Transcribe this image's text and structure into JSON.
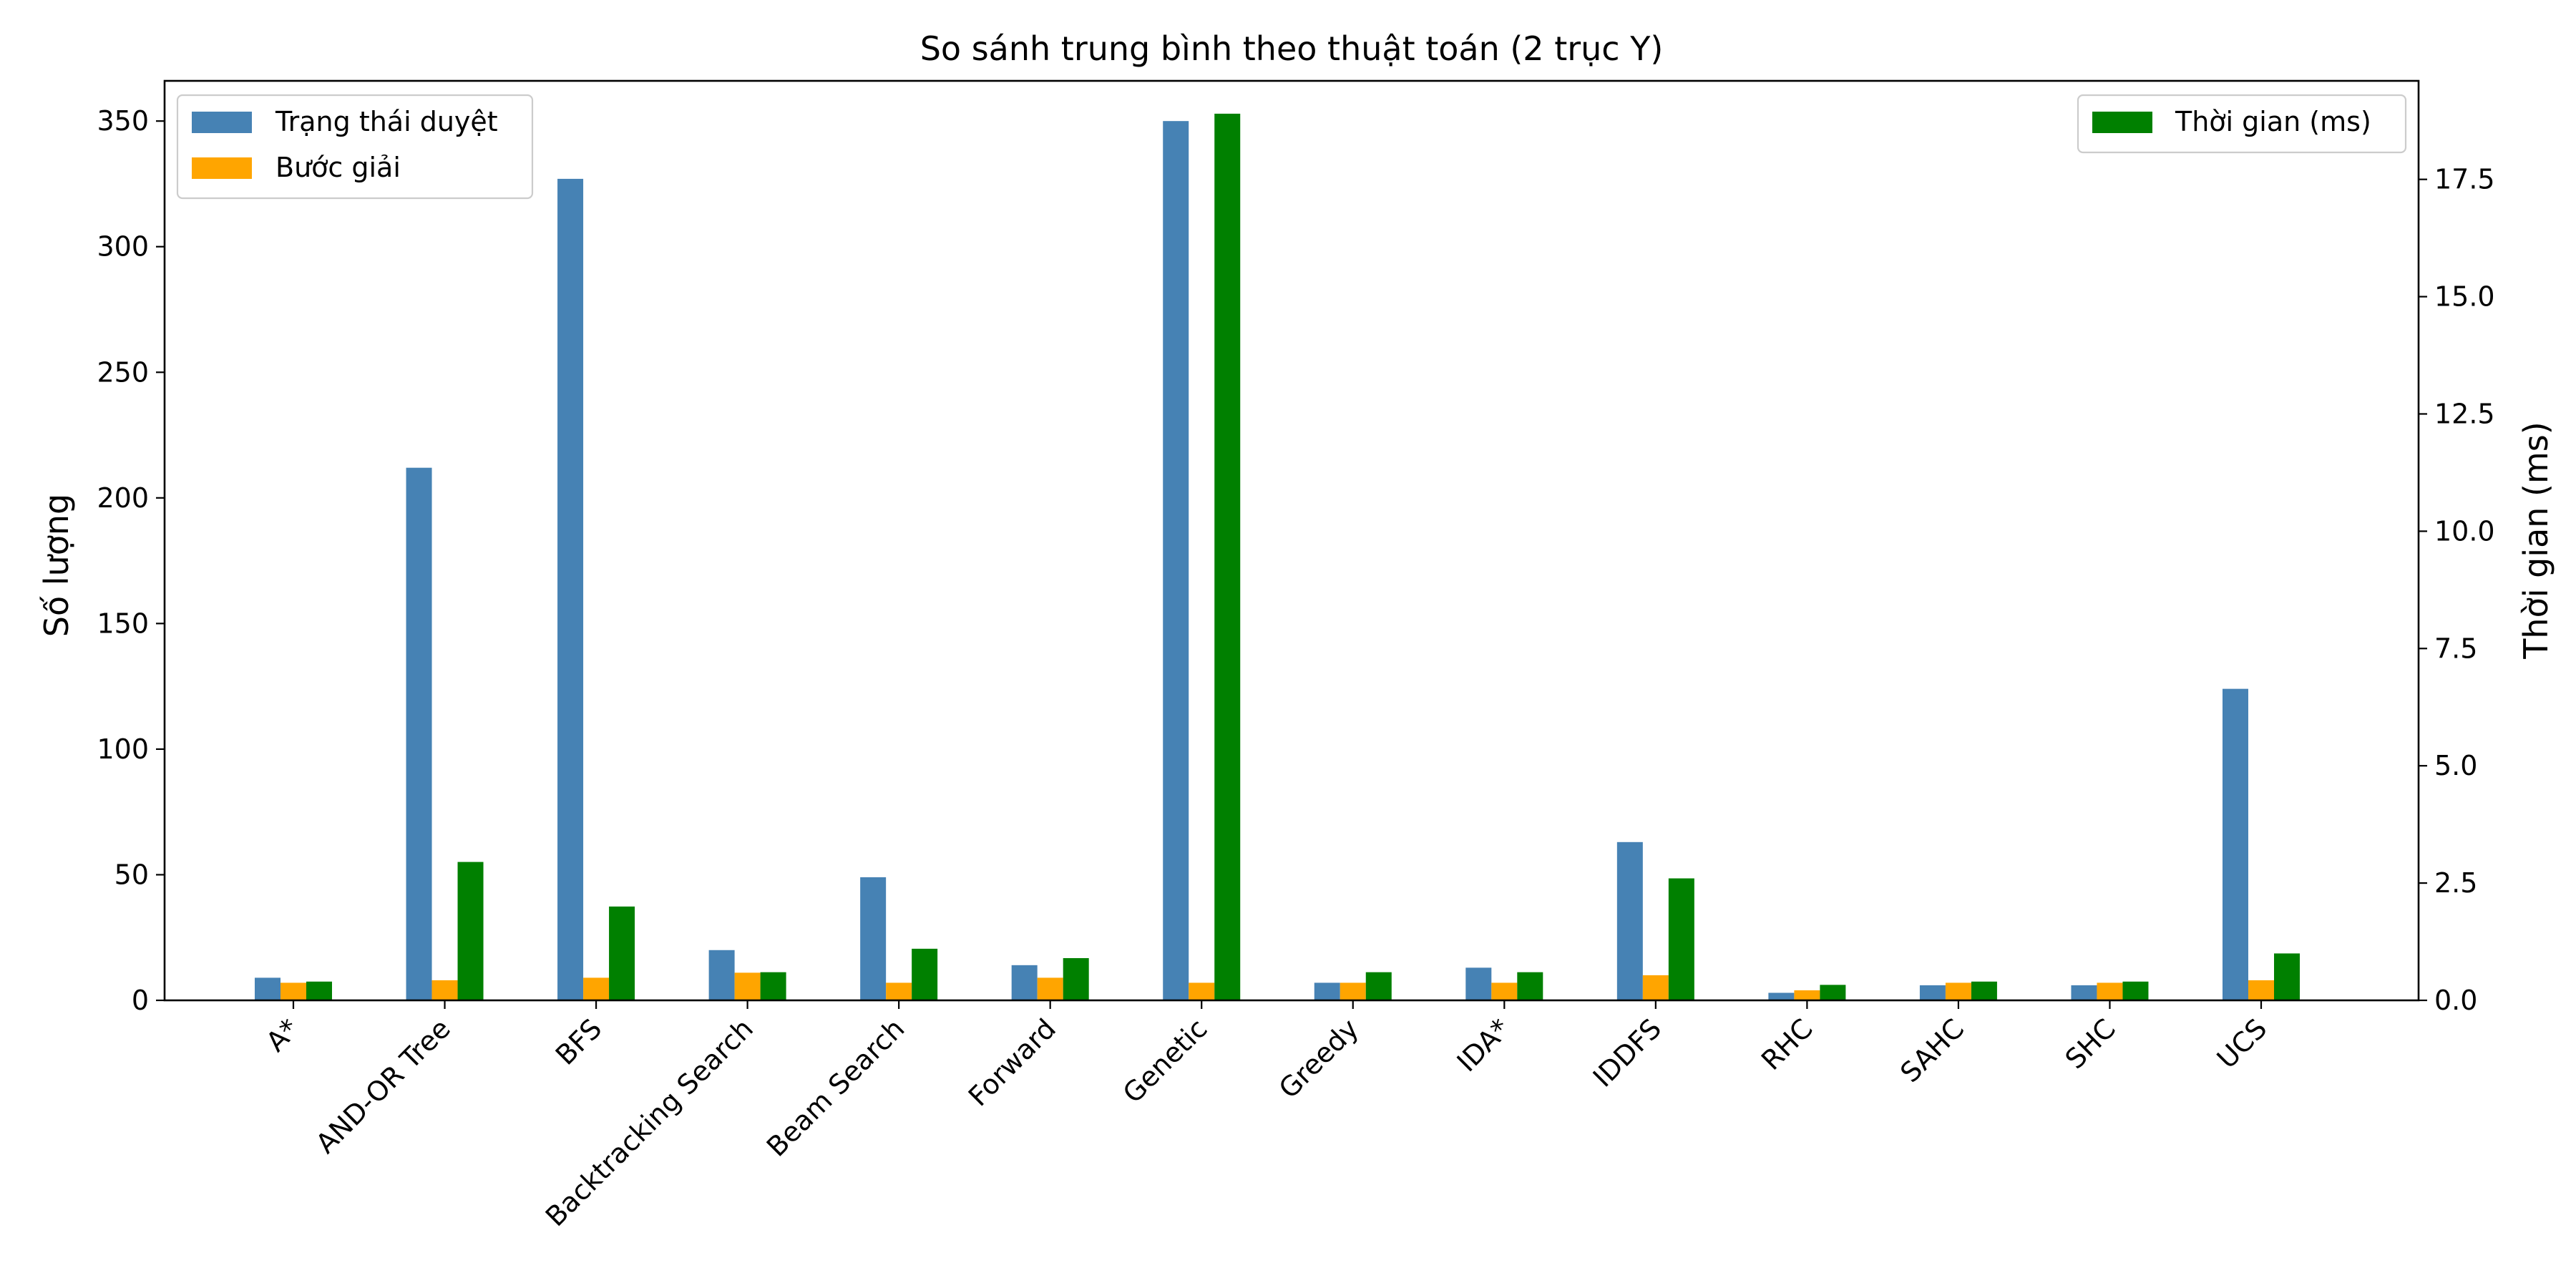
{
  "chart_data": {
    "type": "bar",
    "title": "So sánh trung bình theo thuật toán (2 trục Y)",
    "xlabel": "",
    "ylabel_left": "Số lượng",
    "ylabel_right": "Thời gian (ms)",
    "ylim_left": [
      0,
      366
    ],
    "ylim_right": [
      0,
      19.6
    ],
    "yticks_left": [
      0,
      50,
      100,
      150,
      200,
      250,
      300,
      350
    ],
    "yticks_right": [
      "0.0",
      "2.5",
      "5.0",
      "7.5",
      "10.0",
      "12.5",
      "15.0",
      "17.5"
    ],
    "categories": [
      "A*",
      "AND-OR Tree",
      "BFS",
      "Backtracking Search",
      "Beam Search",
      "Forward",
      "Genetic",
      "Greedy",
      "IDA*",
      "IDDFS",
      "RHC",
      "SAHC",
      "SHC",
      "UCS"
    ],
    "series": [
      {
        "name": "Trạng thái duyệt",
        "axis": "left",
        "color": "#4682b4",
        "values": [
          9,
          212,
          327,
          20,
          49,
          14,
          350,
          7,
          13,
          63,
          3,
          6,
          6,
          124
        ]
      },
      {
        "name": "Bước giải",
        "axis": "left",
        "color": "#ffa500",
        "values": [
          7,
          8,
          9,
          11,
          7,
          9,
          7,
          7,
          7,
          10,
          4,
          7,
          7,
          8
        ]
      },
      {
        "name": "Thời gian (ms)",
        "axis": "right",
        "color": "#008000",
        "values": [
          0.4,
          2.95,
          2.0,
          0.6,
          1.1,
          0.9,
          18.9,
          0.6,
          0.6,
          2.6,
          0.33,
          0.4,
          0.4,
          1.0
        ]
      }
    ],
    "legend_left": {
      "position": "upper-left",
      "entries": [
        "Trạng thái duyệt",
        "Bước giải"
      ]
    },
    "legend_right": {
      "position": "upper-right",
      "entries": [
        "Thời gian (ms)"
      ]
    },
    "grid": false
  }
}
